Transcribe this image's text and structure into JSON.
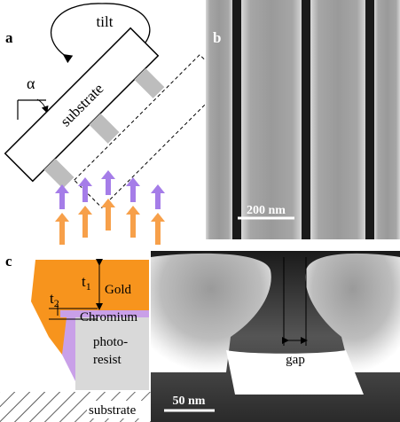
{
  "panels": {
    "a": {
      "label": "a",
      "tilt": "tilt",
      "angle": "α",
      "substrate": "substrate"
    },
    "b": {
      "label": "b",
      "scale": "200 nm"
    },
    "c": {
      "label": "c",
      "t1": {
        "base": "t",
        "sub": "1"
      },
      "gold": "Gold",
      "t2": {
        "base": "t",
        "sub": "2"
      },
      "chromium": "Chromium",
      "resist": [
        "photo-",
        "resist"
      ],
      "substrate": "substrate",
      "gap": "gap",
      "scale": "50 nm"
    }
  }
}
